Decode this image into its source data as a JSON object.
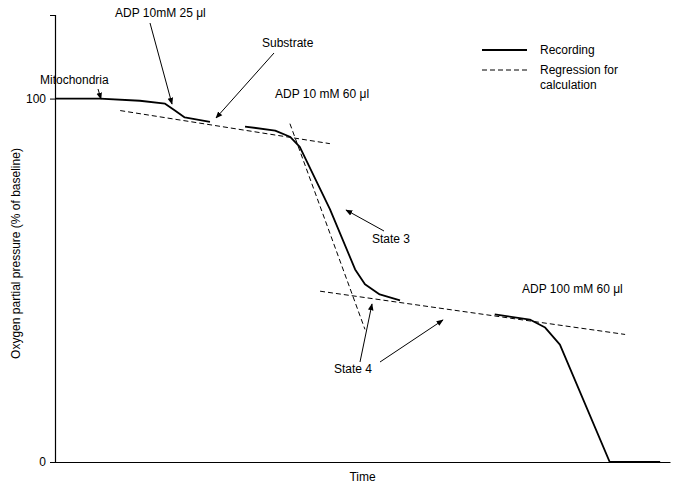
{
  "chart_data": {
    "type": "line",
    "x_label": "Time",
    "y_label": "Oxygen partial pressure (% of baseline)",
    "xlim": [
      0,
      100
    ],
    "ylim": [
      0,
      123
    ],
    "yticks": [
      0,
      100
    ],
    "tick_labels": "y",
    "grid": false,
    "legend": "upper right",
    "series": [
      {
        "name": "Recording",
        "color": "#000000",
        "line_style": "solid",
        "x": [
          0,
          7.3,
          13.8,
          17.9,
          19.5,
          21.1,
          25.2,
          null,
          30.9,
          35.8,
          38.2,
          39.8,
          44.7,
          48.8,
          50.4,
          52.8,
          56.1,
          null,
          71.5,
          77.2,
          79.7,
          82.1,
          90.2,
          98.4
        ],
        "values": [
          100,
          100,
          99.4,
          98.6,
          96.7,
          94.8,
          93.6,
          null,
          92.3,
          91.2,
          89.5,
          86.7,
          69.6,
          53.0,
          48.9,
          46.1,
          44.5,
          null,
          40.6,
          39.2,
          37.0,
          32.3,
          0,
          0
        ]
      },
      {
        "name": "Regression for calculation",
        "color": "#000000",
        "line_style": "dashed",
        "x": [
          10.6,
          44.7,
          null,
          38.2,
          50.4,
          null,
          43.1,
          92.7
        ],
        "values": [
          96.7,
          87.6,
          null,
          93.1,
          36.5,
          null,
          47.0,
          35.1
        ]
      }
    ],
    "annotations": [
      "Mitochondria",
      "ADP 10mM 25 μl",
      "Substrate",
      "ADP 10 mM 60 μl",
      "State 3",
      "State 4",
      "ADP 100 mM 60 μl"
    ]
  }
}
